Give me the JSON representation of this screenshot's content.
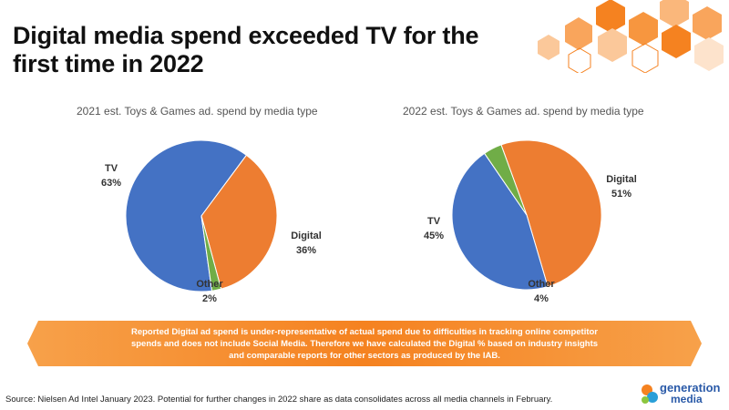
{
  "page": {
    "title_line1": "Digital media spend exceeded TV for the",
    "title_line2": "first time in 2022",
    "callout_line1": "Reported Digital ad spend is under-representative of actual spend due to difficulties in tracking online competitor",
    "callout_line2": "spends and does not include Social Media. Therefore we have calculated the Digital % based on industry insights",
    "callout_line3": "and comparable reports for other sectors as produced by the IAB.",
    "source": "Source: Nielsen Ad Intel January 2023. Potential for further changes in 2022 share as data consolidates across all media channels in February.",
    "logo_line1": "generation",
    "logo_line2": "media"
  },
  "colors": {
    "tv": "#4472C4",
    "digital": "#ED7D31",
    "other": "#70AD47",
    "accent": "#F58220"
  },
  "chart_data": [
    {
      "type": "pie",
      "title": "2021 est. Toys & Games ad. spend by media type",
      "categories": [
        "TV",
        "Digital",
        "Other"
      ],
      "values": [
        63,
        36,
        2
      ],
      "labels": [
        "63%",
        "36%",
        "2%"
      ]
    },
    {
      "type": "pie",
      "title": "2022 est. Toys & Games ad. spend by media type",
      "categories": [
        "Digital",
        "TV",
        "Other"
      ],
      "values": [
        51,
        45,
        4
      ],
      "labels": [
        "51%",
        "45%",
        "4%"
      ]
    }
  ]
}
